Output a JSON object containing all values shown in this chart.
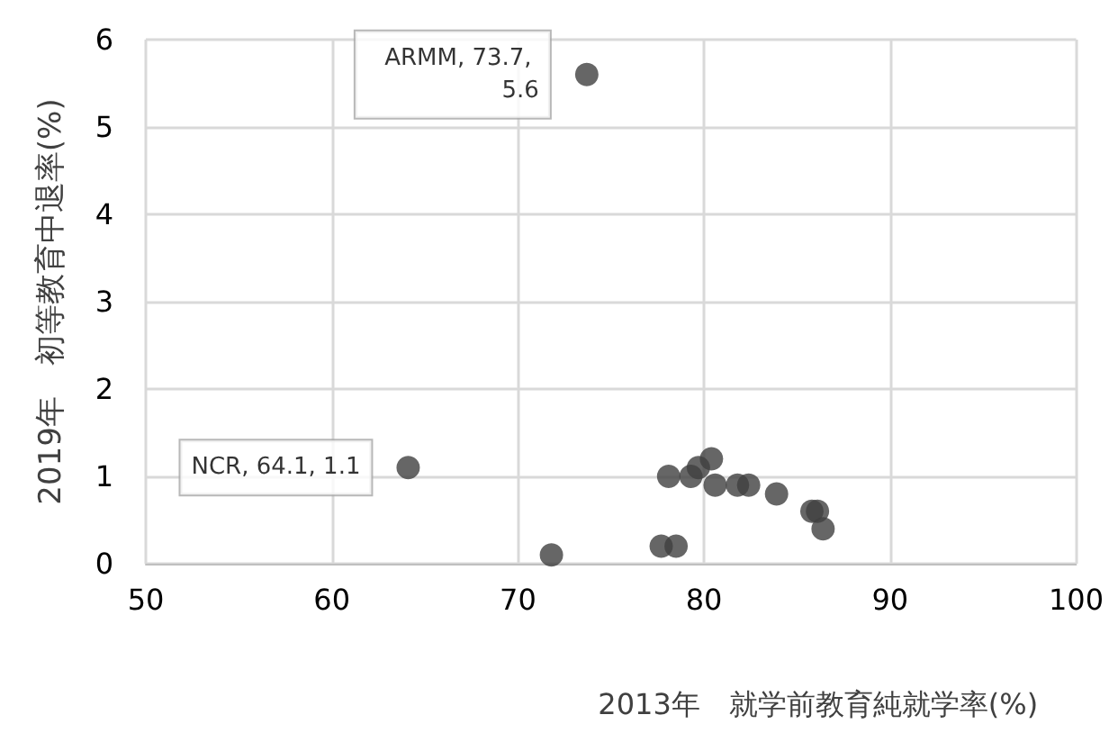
{
  "chart_data": {
    "type": "scatter",
    "xlabel": "2013年　就学前教育純就学率(%)",
    "ylabel": "2019年　初等教育中退率(%)",
    "x": [
      64.1,
      73.7,
      71.8,
      77.7,
      78.5,
      78.1,
      79.3,
      79.7,
      80.4,
      80.6,
      81.8,
      82.4,
      83.9,
      85.8,
      86.1,
      86.4
    ],
    "series": [
      {
        "color": "#404040",
        "values": [
          1.1,
          5.6,
          0.1,
          0.2,
          0.2,
          1.0,
          1.0,
          1.1,
          1.2,
          0.9,
          0.9,
          0.9,
          0.8,
          0.6,
          0.6,
          0.4
        ]
      }
    ],
    "xlim": [
      50,
      100
    ],
    "xticks": [
      50,
      60,
      70,
      80,
      90,
      100
    ],
    "ylim": [
      0,
      6
    ],
    "yticks": [
      0,
      1,
      2,
      3,
      4,
      5,
      6
    ],
    "grid": true,
    "marker": "circle",
    "annotations": [
      {
        "text": "NCR, 64.1, 1.1",
        "x": 64.1,
        "y": 1.1
      },
      {
        "text": "ARMM, 73.7, 5.6",
        "x": 73.7,
        "y": 5.6
      }
    ]
  }
}
